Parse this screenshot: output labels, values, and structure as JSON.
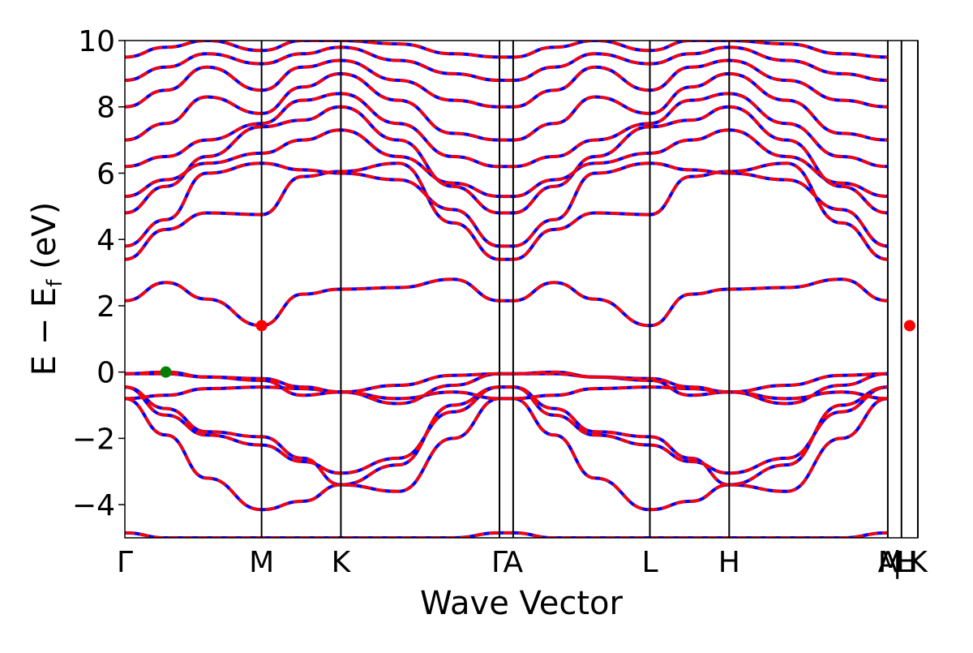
{
  "chart_data": {
    "type": "line",
    "title": "",
    "xlabel": "Wave Vector",
    "ylabel": "E − E",
    "ylabel_sub": "f",
    "ylabel_unit": " (eV)",
    "ylim": [
      -5,
      10
    ],
    "yticks": [
      {
        "value": 10,
        "label": "10"
      },
      {
        "value": 8,
        "label": "8"
      },
      {
        "value": 6,
        "label": "6"
      },
      {
        "value": 4,
        "label": "4"
      },
      {
        "value": 2,
        "label": "2"
      },
      {
        "value": 0,
        "label": "0"
      },
      {
        "value": -2,
        "label": "−2"
      },
      {
        "value": -4,
        "label": "−4"
      }
    ],
    "kpath": [
      {
        "label": "Γ",
        "x": 0.0
      },
      {
        "label": "M",
        "x": 1.0
      },
      {
        "label": "K",
        "x": 1.58
      },
      {
        "label": "Γ",
        "x": 2.74
      },
      {
        "label": "A",
        "x": 2.84
      },
      {
        "label": "M",
        "x": 5.6
      },
      {
        "label": "L",
        "x": 3.84
      },
      {
        "label": "K",
        "x": 5.8
      },
      {
        "label": "H",
        "x": 4.42
      },
      {
        "label": "A",
        "x": 5.58
      },
      {
        "label": "L",
        "x": 5.7
      },
      {
        "label": "|",
        "x": 5.65
      },
      {
        "label": "H",
        "x": 5.72
      }
    ],
    "xlim": [
      0,
      5.8
    ],
    "vlines": [
      1.0,
      1.58,
      2.74,
      2.84,
      3.84,
      4.42,
      5.58,
      5.68,
      5.8
    ],
    "series_styles": [
      {
        "color": "#0000ff",
        "dash": "solid"
      },
      {
        "color": "#ff0000",
        "dash": "dashed"
      }
    ],
    "bands_x": [
      0,
      0.3,
      0.6,
      1.0,
      1.3,
      1.58,
      2.0,
      2.4,
      2.74,
      2.84,
      3.14,
      3.44,
      3.84,
      4.14,
      4.42,
      4.84,
      5.24,
      5.58
    ],
    "bands": [
      [
        -4.85,
        -5,
        -5,
        -5,
        -5,
        -5,
        -5,
        -5,
        -4.85,
        -4.85,
        -5,
        -5,
        -5,
        -5,
        -5,
        -5,
        -5,
        -4.85
      ],
      [
        -0.8,
        -1.9,
        -3.2,
        -4.15,
        -3.9,
        -3.4,
        -3.6,
        -2.0,
        -0.8,
        -0.8,
        -1.9,
        -3.2,
        -4.15,
        -3.9,
        -3.4,
        -3.6,
        -2.0,
        -0.8
      ],
      [
        -0.45,
        -1.3,
        -1.9,
        -2.2,
        -2.7,
        -3.05,
        -2.6,
        -1.2,
        -0.45,
        -0.45,
        -1.3,
        -1.9,
        -2.2,
        -2.7,
        -3.05,
        -2.6,
        -1.2,
        -0.45
      ],
      [
        -0.45,
        -1.1,
        -1.8,
        -1.95,
        -2.6,
        -3.4,
        -2.8,
        -1.0,
        -0.45,
        -0.45,
        -1.1,
        -1.8,
        -1.95,
        -2.6,
        -3.4,
        -2.8,
        -1.0,
        -0.45
      ],
      [
        -0.8,
        -0.7,
        -0.5,
        -0.45,
        -0.5,
        -0.6,
        -0.8,
        -0.6,
        -0.8,
        -0.8,
        -0.7,
        -0.5,
        -0.45,
        -0.5,
        -0.6,
        -0.8,
        -0.6,
        -0.8
      ],
      [
        -0.05,
        0.0,
        -0.15,
        -0.25,
        -0.7,
        -0.6,
        -0.95,
        -0.4,
        -0.05,
        -0.05,
        0.0,
        -0.15,
        -0.25,
        -0.7,
        -0.6,
        -0.95,
        -0.4,
        -0.05
      ],
      [
        -0.05,
        -0.05,
        -0.15,
        -0.2,
        -0.45,
        -0.6,
        -0.4,
        -0.1,
        -0.05,
        -0.05,
        -0.05,
        -0.15,
        -0.2,
        -0.45,
        -0.6,
        -0.4,
        -0.1,
        -0.05
      ],
      [
        2.15,
        2.7,
        2.2,
        1.4,
        2.35,
        2.5,
        2.55,
        2.8,
        2.15,
        2.15,
        2.7,
        2.2,
        1.4,
        2.35,
        2.5,
        2.55,
        2.8,
        2.15
      ],
      [
        3.4,
        4.3,
        4.8,
        4.75,
        5.9,
        6.05,
        6.3,
        4.5,
        3.4,
        3.4,
        4.3,
        4.8,
        4.75,
        5.9,
        6.05,
        6.3,
        4.5,
        3.4
      ],
      [
        3.8,
        4.6,
        6.0,
        6.3,
        6.1,
        6.0,
        5.8,
        4.9,
        3.8,
        3.8,
        4.6,
        6.0,
        6.3,
        6.1,
        6.0,
        5.8,
        4.9,
        3.8
      ],
      [
        5.3,
        5.8,
        6.3,
        6.6,
        7.0,
        7.3,
        6.5,
        5.7,
        5.3,
        5.3,
        5.8,
        6.3,
        6.6,
        7.0,
        7.3,
        6.5,
        5.7,
        5.3
      ],
      [
        4.8,
        5.6,
        6.5,
        7.4,
        7.6,
        8.0,
        7.0,
        5.6,
        4.8,
        4.8,
        5.6,
        6.5,
        7.4,
        7.6,
        8.0,
        7.0,
        5.6,
        4.8
      ],
      [
        6.2,
        6.5,
        7.0,
        7.5,
        8.2,
        8.4,
        7.5,
        6.5,
        6.2,
        6.2,
        6.5,
        7.0,
        7.5,
        8.2,
        8.4,
        7.5,
        6.5,
        6.2
      ],
      [
        7.0,
        7.5,
        8.3,
        7.8,
        8.6,
        9.0,
        8.2,
        7.2,
        7.0,
        7.0,
        7.5,
        8.3,
        7.8,
        8.6,
        9.0,
        8.2,
        7.2,
        7.0
      ],
      [
        8.0,
        8.5,
        9.2,
        8.5,
        9.2,
        9.4,
        8.8,
        8.2,
        8.0,
        8.0,
        8.5,
        9.2,
        8.5,
        9.2,
        9.4,
        8.8,
        8.2,
        8.0
      ],
      [
        8.8,
        9.2,
        9.6,
        9.3,
        9.6,
        9.8,
        9.4,
        9.0,
        8.8,
        8.8,
        9.2,
        9.6,
        9.3,
        9.6,
        9.8,
        9.4,
        9.0,
        8.8
      ],
      [
        9.5,
        9.8,
        10.0,
        9.7,
        10.0,
        10.0,
        9.9,
        9.6,
        9.5,
        9.5,
        9.8,
        10.0,
        9.7,
        10.0,
        10.0,
        9.9,
        9.6,
        9.5
      ]
    ],
    "markers": [
      {
        "name": "vbm-marker",
        "x": 0.3,
        "y": 0.0,
        "color": "#008000"
      },
      {
        "name": "cbm-marker",
        "x": 1.0,
        "y": 1.4,
        "color": "#ff0000"
      },
      {
        "name": "cbm-marker-end",
        "x": 5.74,
        "y": 1.4,
        "color": "#ff0000"
      }
    ],
    "grid": false,
    "legend": "none"
  }
}
